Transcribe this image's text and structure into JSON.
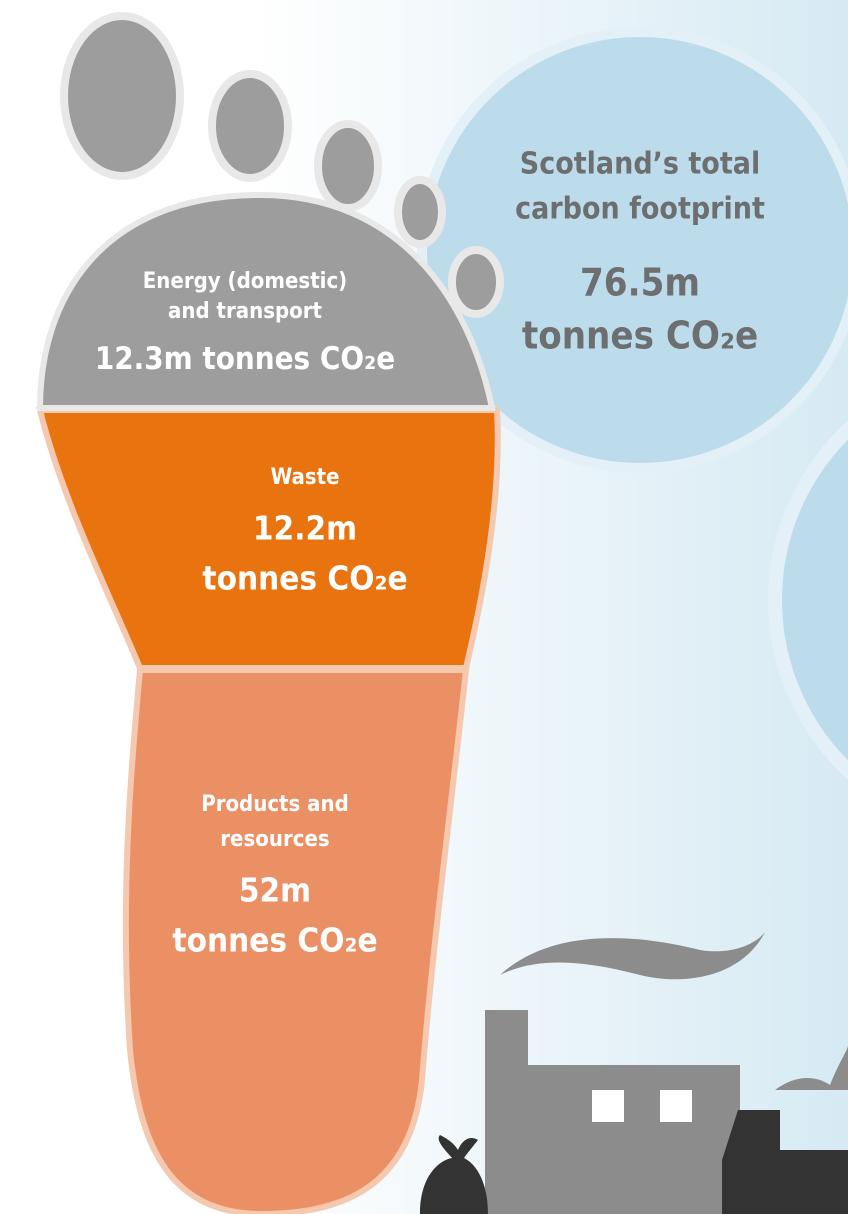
{
  "callout": {
    "title": [
      "Scotland’s total",
      "carbon footprint"
    ],
    "value": "76.5m",
    "unit": "tonnes CO₂e"
  },
  "segments": [
    {
      "label": [
        "Energy (domestic)",
        "and transport"
      ],
      "value": "12.3m",
      "unit": "tonnes CO₂e"
    },
    {
      "label": [
        "Waste"
      ],
      "value": "12.2m",
      "unit": "tonnes CO₂e"
    },
    {
      "label": [
        "Products and",
        "resources"
      ],
      "value": "52m",
      "unit": "tonnes CO₂e"
    }
  ]
}
